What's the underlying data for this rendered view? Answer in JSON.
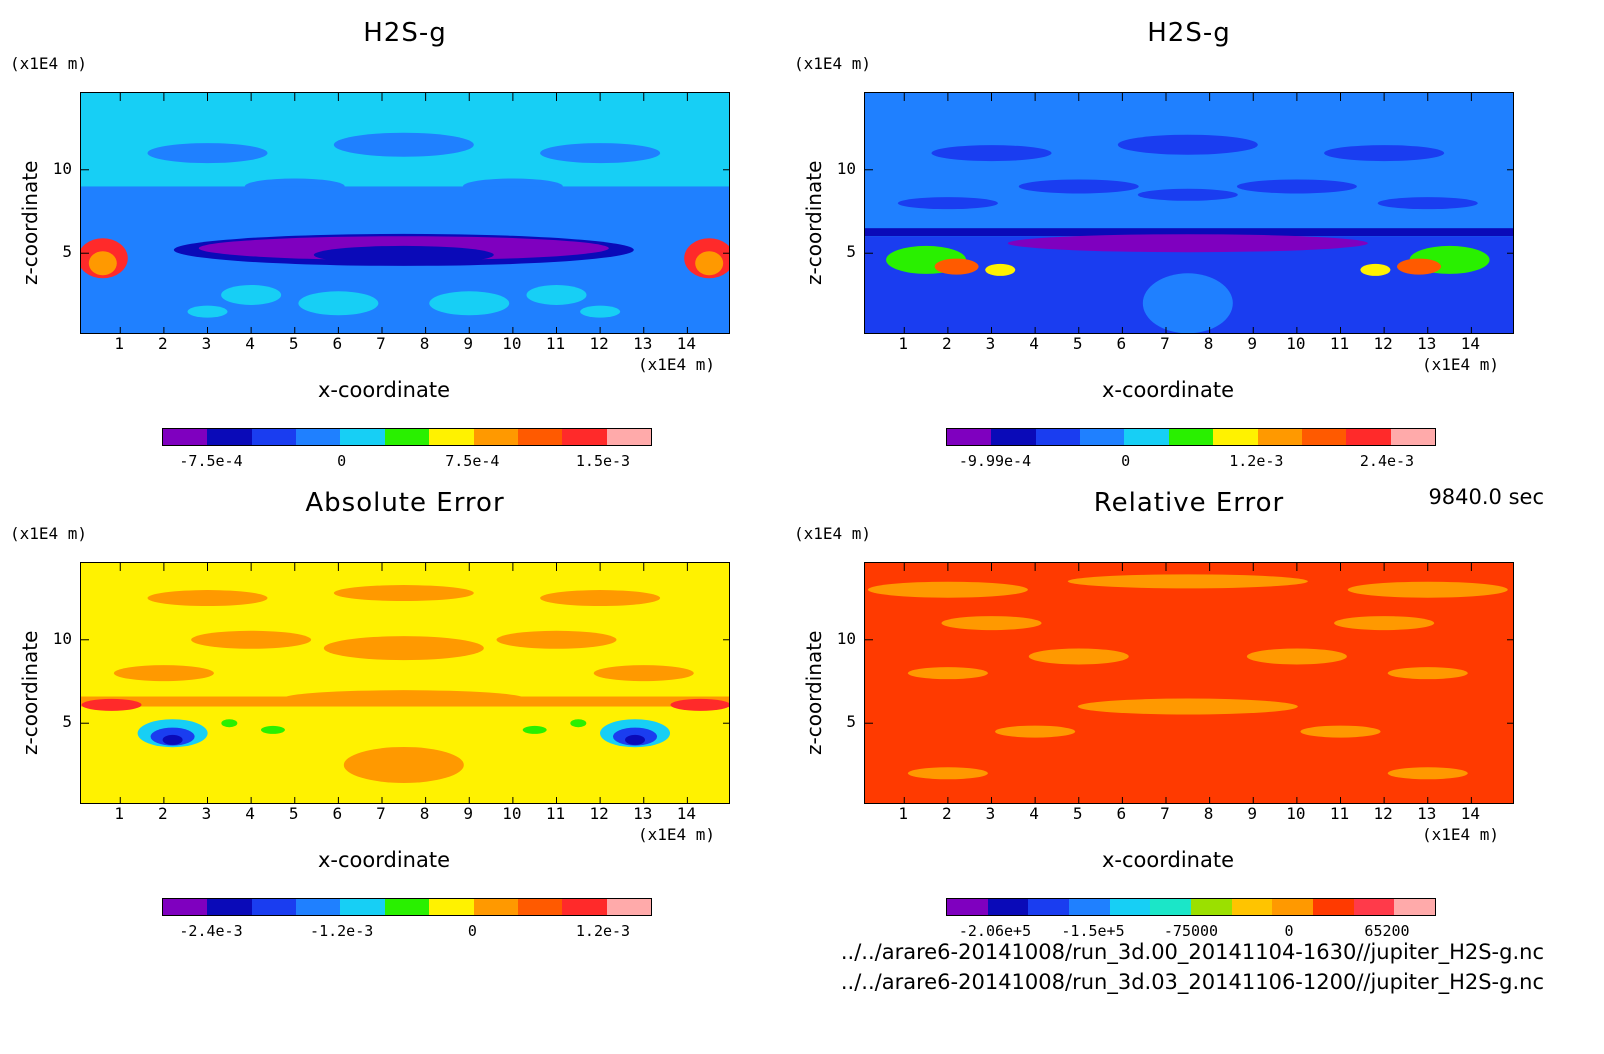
{
  "footer": {
    "time": "9840.0 sec",
    "path1": "../../arare6-20141008/run_3d.00_20141104-1630//jupiter_H2S-g.nc",
    "path2": "../../arare6-20141008/run_3d.03_20141106-1200//jupiter_H2S-g.nc"
  },
  "chart_data": [
    {
      "type": "heatmap",
      "title": "H2S-g",
      "xlabel": "x-coordinate",
      "ylabel": "z-coordinate",
      "xunit": "(x1E4 m)",
      "yunit": "(x1E4 m)",
      "xticks": [
        "1",
        "2",
        "3",
        "4",
        "5",
        "6",
        "7",
        "8",
        "9",
        "10",
        "11",
        "12",
        "13",
        "14"
      ],
      "yticks": [
        "5",
        "10"
      ],
      "colorbar_colors": [
        "#7f00bf",
        "#0a0ab8",
        "#1a3df0",
        "#1f80ff",
        "#17cff5",
        "#29f000",
        "#fff200",
        "#ff9900",
        "#ff5a00",
        "#ff2a2a",
        "#ffaaaa"
      ],
      "colorbar_labels": [
        "-7.5e-4",
        "0",
        "7.5e-4",
        "1.5e-3"
      ],
      "background": "#17cff5"
    },
    {
      "type": "heatmap",
      "title": "H2S-g",
      "xlabel": "x-coordinate",
      "ylabel": "z-coordinate",
      "xunit": "(x1E4 m)",
      "yunit": "(x1E4 m)",
      "xticks": [
        "1",
        "2",
        "3",
        "4",
        "5",
        "6",
        "7",
        "8",
        "9",
        "10",
        "11",
        "12",
        "13",
        "14"
      ],
      "yticks": [
        "5",
        "10"
      ],
      "colorbar_colors": [
        "#7f00bf",
        "#0a0ab8",
        "#1a3df0",
        "#1f80ff",
        "#17cff5",
        "#29f000",
        "#fff200",
        "#ff9900",
        "#ff5a00",
        "#ff2a2a",
        "#ffaaaa"
      ],
      "colorbar_labels": [
        "-9.99e-4",
        "0",
        "1.2e-3",
        "2.4e-3"
      ],
      "background": "#1f80ff"
    },
    {
      "type": "heatmap",
      "title": "Absolute Error",
      "xlabel": "x-coordinate",
      "ylabel": "z-coordinate",
      "xunit": "(x1E4 m)",
      "yunit": "(x1E4 m)",
      "xticks": [
        "1",
        "2",
        "3",
        "4",
        "5",
        "6",
        "7",
        "8",
        "9",
        "10",
        "11",
        "12",
        "13",
        "14"
      ],
      "yticks": [
        "5",
        "10"
      ],
      "colorbar_colors": [
        "#7f00bf",
        "#0a0ab8",
        "#1a3df0",
        "#1f80ff",
        "#17cff5",
        "#29f000",
        "#fff200",
        "#ff9900",
        "#ff5a00",
        "#ff2a2a",
        "#ffaaaa"
      ],
      "colorbar_labels": [
        "-2.4e-3",
        "-1.2e-3",
        "0",
        "1.2e-3"
      ],
      "background": "#fff200"
    },
    {
      "type": "heatmap",
      "title": "Relative Error",
      "xlabel": "x-coordinate",
      "ylabel": "z-coordinate",
      "xunit": "(x1E4 m)",
      "yunit": "(x1E4 m)",
      "xticks": [
        "1",
        "2",
        "3",
        "4",
        "5",
        "6",
        "7",
        "8",
        "9",
        "10",
        "11",
        "12",
        "13",
        "14"
      ],
      "yticks": [
        "5",
        "10"
      ],
      "colorbar_colors": [
        "#7f00bf",
        "#0a0ab8",
        "#1a3df0",
        "#1f80ff",
        "#17cff5",
        "#1be6c8",
        "#9be000",
        "#ffc400",
        "#ff9900",
        "#ff3a00",
        "#ff3a4a",
        "#ffaaaa"
      ],
      "colorbar_labels": [
        "-2.06e+5",
        "-1.5e+5",
        "-75000",
        "0",
        "65200"
      ],
      "background": "#ff3a00"
    }
  ]
}
